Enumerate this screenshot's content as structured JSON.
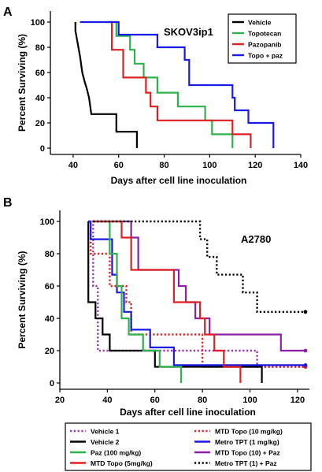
{
  "chart_data": [
    {
      "type": "line",
      "step": true,
      "panel": "A",
      "title": "SKOV3ip1",
      "xlabel": "Days after cell line inoculation",
      "ylabel": "Percent Surviving (%)",
      "xlim": [
        30,
        140
      ],
      "ylim": [
        0,
        100
      ],
      "xticks": [
        40,
        60,
        80,
        100,
        120,
        140
      ],
      "yticks": [
        0,
        20,
        40,
        60,
        80,
        100
      ],
      "legend_position": "top-right",
      "series": [
        {
          "name": "Vehicle",
          "color": "#000000",
          "dash": "solid",
          "points": [
            [
              41,
              100
            ],
            [
              41,
              93
            ],
            [
              43,
              73
            ],
            [
              44,
              60
            ],
            [
              45,
              53
            ],
            [
              46,
              47
            ],
            [
              47,
              40
            ],
            [
              48,
              27
            ],
            [
              59,
              27
            ],
            [
              59,
              13
            ],
            [
              68,
              13
            ],
            [
              68,
              0
            ]
          ]
        },
        {
          "name": "Topotecan",
          "color": "#2db34a",
          "dash": "solid",
          "points": [
            [
              54,
              100
            ],
            [
              59,
              100
            ],
            [
              59,
              89
            ],
            [
              65,
              89
            ],
            [
              65,
              78
            ],
            [
              67,
              78
            ],
            [
              67,
              67
            ],
            [
              71,
              67
            ],
            [
              71,
              56
            ],
            [
              77,
              56
            ],
            [
              77,
              44
            ],
            [
              86,
              44
            ],
            [
              86,
              33
            ],
            [
              98,
              33
            ],
            [
              98,
              22
            ],
            [
              101,
              22
            ],
            [
              101,
              11
            ],
            [
              110,
              11
            ],
            [
              110,
              0
            ]
          ]
        },
        {
          "name": "Pazopanib",
          "color": "#e02020",
          "dash": "solid",
          "points": [
            [
              56,
              100
            ],
            [
              57,
              100
            ],
            [
              57,
              78
            ],
            [
              62,
              78
            ],
            [
              62,
              56
            ],
            [
              72,
              56
            ],
            [
              72,
              44
            ],
            [
              74,
              44
            ],
            [
              74,
              33
            ],
            [
              77,
              33
            ],
            [
              77,
              22
            ],
            [
              110,
              22
            ],
            [
              110,
              11
            ],
            [
              118,
              11
            ],
            [
              118,
              0
            ]
          ]
        },
        {
          "name": "Topo + paz",
          "color": "#1a1ae6",
          "dash": "solid",
          "points": [
            [
              43,
              100
            ],
            [
              60,
              100
            ],
            [
              60,
              90
            ],
            [
              77,
              90
            ],
            [
              77,
              80
            ],
            [
              89,
              80
            ],
            [
              89,
              70
            ],
            [
              91,
              70
            ],
            [
              91,
              50
            ],
            [
              110,
              50
            ],
            [
              110,
              40
            ],
            [
              111,
              40
            ],
            [
              111,
              30
            ],
            [
              117,
              30
            ],
            [
              117,
              20
            ],
            [
              128,
              20
            ],
            [
              128,
              0
            ]
          ]
        }
      ]
    },
    {
      "type": "line",
      "step": true,
      "panel": "B",
      "title": "A2780",
      "xlabel": "Days after cell line inoculation",
      "ylabel": "Percent Surviving (%)",
      "xlim": [
        20,
        125
      ],
      "ylim": [
        0,
        100
      ],
      "xticks": [
        20,
        40,
        60,
        80,
        100,
        120
      ],
      "yticks": [
        0,
        20,
        40,
        60,
        80,
        100
      ],
      "legend_position": "bottom",
      "legend_columns": 2,
      "series": [
        {
          "name": "Vehicle 1",
          "color": "#9b30c0",
          "dash": "dot",
          "points": [
            [
              32,
              100
            ],
            [
              34,
              100
            ],
            [
              34,
              60
            ],
            [
              36,
              60
            ],
            [
              36,
              20
            ],
            [
              103,
              20
            ],
            [
              103,
              10
            ],
            [
              123,
              10
            ]
          ]
        },
        {
          "name": "MTD Topo (10 mg/kg)",
          "color": "#e02020",
          "dash": "dot",
          "points": [
            [
              32,
              100
            ],
            [
              33,
              100
            ],
            [
              33,
              80
            ],
            [
              41,
              80
            ],
            [
              41,
              60
            ],
            [
              48,
              60
            ],
            [
              48,
              50
            ],
            [
              50,
              50
            ],
            [
              50,
              30
            ],
            [
              80,
              30
            ],
            [
              80,
              10
            ],
            [
              123,
              10
            ]
          ]
        },
        {
          "name": "Vehicle 2",
          "color": "#000000",
          "dash": "solid",
          "points": [
            [
              32,
              100
            ],
            [
              32,
              50
            ],
            [
              35,
              50
            ],
            [
              35,
              40
            ],
            [
              38,
              40
            ],
            [
              38,
              30
            ],
            [
              41,
              30
            ],
            [
              41,
              20
            ],
            [
              60,
              20
            ],
            [
              60,
              10
            ],
            [
              105,
              10
            ],
            [
              105,
              0
            ]
          ]
        },
        {
          "name": "Metro TPT (1 mg/kg)",
          "color": "#1a1ae6",
          "dash": "solid",
          "points": [
            [
              32,
              100
            ],
            [
              33,
              100
            ],
            [
              33,
              89
            ],
            [
              42,
              89
            ],
            [
              42,
              67
            ],
            [
              44,
              67
            ],
            [
              44,
              56
            ],
            [
              47,
              56
            ],
            [
              47,
              44
            ],
            [
              50,
              44
            ],
            [
              50,
              33
            ],
            [
              58,
              33
            ],
            [
              58,
              22
            ],
            [
              68,
              22
            ],
            [
              68,
              11
            ],
            [
              123,
              11
            ]
          ]
        },
        {
          "name": "Paz (100 mg/kg)",
          "color": "#2db34a",
          "dash": "solid",
          "points": [
            [
              34,
              100
            ],
            [
              41,
              100
            ],
            [
              41,
              80
            ],
            [
              44,
              80
            ],
            [
              44,
              60
            ],
            [
              46,
              60
            ],
            [
              46,
              40
            ],
            [
              49,
              40
            ],
            [
              49,
              30
            ],
            [
              55,
              30
            ],
            [
              55,
              20
            ],
            [
              62,
              20
            ],
            [
              62,
              10
            ],
            [
              71,
              10
            ],
            [
              71,
              0
            ]
          ]
        },
        {
          "name": "MTD Topo (10) + Paz",
          "color": "#8b1fa8",
          "dash": "solid",
          "points": [
            [
              34,
              100
            ],
            [
              50,
              100
            ],
            [
              50,
              90
            ],
            [
              53,
              90
            ],
            [
              53,
              70
            ],
            [
              70,
              70
            ],
            [
              70,
              60
            ],
            [
              73,
              60
            ],
            [
              73,
              50
            ],
            [
              77,
              50
            ],
            [
              77,
              40
            ],
            [
              83,
              40
            ],
            [
              83,
              30
            ],
            [
              113,
              30
            ],
            [
              113,
              20
            ],
            [
              123,
              20
            ]
          ]
        },
        {
          "name": "MTD Topo (5mg/kg)",
          "color": "#e02020",
          "dash": "solid",
          "points": [
            [
              34,
              100
            ],
            [
              46,
              100
            ],
            [
              46,
              90
            ],
            [
              50,
              90
            ],
            [
              50,
              70
            ],
            [
              68,
              70
            ],
            [
              68,
              50
            ],
            [
              79,
              50
            ],
            [
              79,
              40
            ],
            [
              81,
              40
            ],
            [
              81,
              30
            ],
            [
              85,
              30
            ],
            [
              85,
              20
            ],
            [
              89,
              20
            ],
            [
              89,
              10
            ],
            [
              96,
              10
            ],
            [
              96,
              0
            ]
          ]
        },
        {
          "name": "Metro TPT (1) + Paz",
          "color": "#000000",
          "dash": "dot",
          "points": [
            [
              34,
              100
            ],
            [
              79,
              100
            ],
            [
              79,
              89
            ],
            [
              82,
              89
            ],
            [
              82,
              78
            ],
            [
              86,
              78
            ],
            [
              86,
              67
            ],
            [
              97,
              67
            ],
            [
              97,
              56
            ],
            [
              103,
              56
            ],
            [
              103,
              44
            ],
            [
              123,
              44
            ]
          ]
        }
      ]
    }
  ],
  "panels": {
    "A": {
      "letter": "A"
    },
    "B": {
      "letter": "B"
    }
  }
}
